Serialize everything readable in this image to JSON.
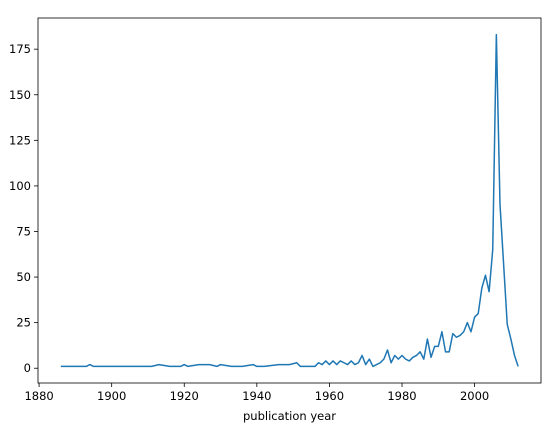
{
  "chart_data": {
    "type": "line",
    "xlabel": "publication year",
    "x": [
      1886,
      1890,
      1893,
      1894,
      1895,
      1900,
      1905,
      1910,
      1911,
      1913,
      1916,
      1919,
      1920,
      1921,
      1924,
      1927,
      1929,
      1930,
      1933,
      1936,
      1939,
      1940,
      1942,
      1946,
      1949,
      1951,
      1952,
      1956,
      1957,
      1958,
      1959,
      1960,
      1961,
      1962,
      1963,
      1964,
      1965,
      1966,
      1967,
      1968,
      1969,
      1970,
      1971,
      1972,
      1973,
      1974,
      1975,
      1976,
      1977,
      1978,
      1979,
      1980,
      1981,
      1982,
      1983,
      1984,
      1985,
      1986,
      1987,
      1988,
      1989,
      1990,
      1991,
      1992,
      1993,
      1994,
      1995,
      1996,
      1997,
      1998,
      1999,
      2000,
      2001,
      2002,
      2003,
      2004,
      2005,
      2006,
      2007,
      2008,
      2009,
      2010,
      2011,
      2012
    ],
    "series": [
      {
        "color": "#1f77b4",
        "values": [
          1,
          1,
          1,
          2,
          1,
          1,
          1,
          1,
          1,
          2,
          1,
          1,
          2,
          1,
          2,
          2,
          1,
          2,
          1,
          1,
          2,
          1,
          1,
          2,
          2,
          3,
          1,
          1,
          3,
          2,
          4,
          2,
          4,
          2,
          4,
          3,
          2,
          4,
          2,
          3,
          7,
          2,
          5,
          1,
          2,
          3,
          5,
          10,
          3,
          7,
          5,
          7,
          5,
          4,
          6,
          7,
          9,
          5,
          16,
          6,
          12,
          12,
          20,
          9,
          9,
          19,
          17,
          18,
          20,
          25,
          20,
          28,
          30,
          44,
          51,
          42,
          65,
          183,
          90,
          57,
          24,
          16,
          7,
          1
        ]
      }
    ],
    "xlim": [
      1879.7,
      2018.3
    ],
    "xticks": [
      1880,
      1900,
      1920,
      1940,
      1960,
      1980,
      2000
    ],
    "ylim": [
      -8.1,
      192.1
    ],
    "yticks": [
      0,
      25,
      50,
      75,
      100,
      125,
      150,
      175
    ]
  }
}
